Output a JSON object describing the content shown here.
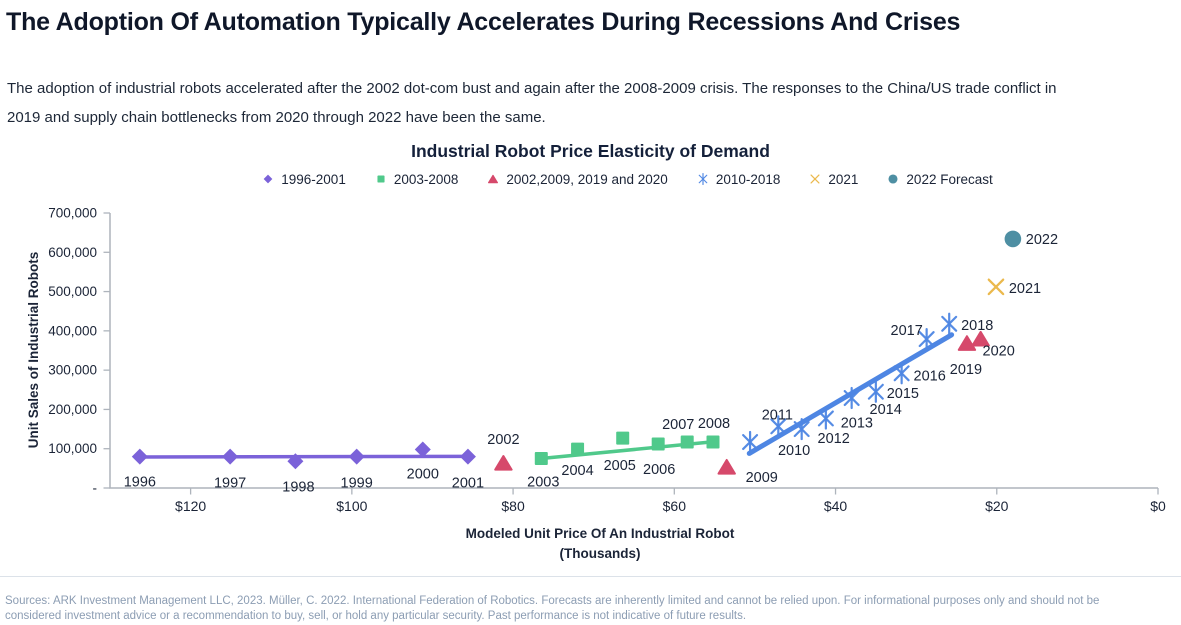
{
  "page": {
    "title": "The Adoption Of Automation Typically Accelerates During Recessions And Crises",
    "subtitle": "The adoption of industrial robots accelerated after the 2002 dot-com bust and again after the 2008-2009 crisis. The responses to the China/US trade conflict in 2019 and supply chain bottlenecks from 2020 through 2022 have been the same.",
    "source": "Sources: ARK Investment Management LLC, 2023. Müller, C. 2022. International Federation of Robotics. Forecasts are inherently limited and cannot be relied upon. For informational purposes only and should not be considered investment advice or a recommendation to buy, sell, or hold any particular security. Past performance is not indicative of future results.",
    "colors": {
      "title_text": "#0F1729",
      "body_text": "#1D2737",
      "axis_line": "#AEB4BC",
      "tick_text": "#1B2437",
      "footer_text": "#8C9DB3"
    }
  },
  "chart_data": {
    "type": "scatter",
    "title": "Industrial Robot Price Elasticity of Demand",
    "xlabel": "Modeled Unit Price Of An Industrial Robot",
    "xlabel_sub": "(Thousands)",
    "ylabel": "Unit Sales of Industrial Robots",
    "x_axis": {
      "reversed": true,
      "min": 0,
      "max": 130,
      "ticks": [
        "$120",
        "$100",
        "$80",
        "$60",
        "$40",
        "$20",
        "$0"
      ],
      "tick_values": [
        120,
        100,
        80,
        60,
        40,
        20,
        0
      ]
    },
    "y_axis": {
      "min": 0,
      "max": 700000,
      "ticks": [
        "700,000",
        "600,000",
        "500,000",
        "400,000",
        "300,000",
        "200,000",
        "100,000",
        "-"
      ],
      "tick_values": [
        700000,
        600000,
        500000,
        400000,
        300000,
        200000,
        100000,
        0
      ]
    },
    "grid": false,
    "legend_position": "top",
    "series": [
      {
        "name": "1996-2001",
        "marker": "diamond",
        "color": "#7B62D9",
        "trend_width": 3.5,
        "trend": [
          [
            126.5,
            79000
          ],
          [
            85.3,
            80500
          ]
        ],
        "points": [
          {
            "year": "1996",
            "price": 126.3,
            "units": 80000,
            "dx": 0,
            "dy": 25
          },
          {
            "year": "1997",
            "price": 115.1,
            "units": 80000,
            "dx": 0,
            "dy": 26
          },
          {
            "year": "1998",
            "price": 107.0,
            "units": 68000,
            "dx": 3,
            "dy": 25
          },
          {
            "year": "1999",
            "price": 99.4,
            "units": 80000,
            "dx": 0,
            "dy": 26
          },
          {
            "year": "2000",
            "price": 91.2,
            "units": 98000,
            "dx": 0,
            "dy": 24
          },
          {
            "year": "2001",
            "price": 85.6,
            "units": 80000,
            "dx": 0,
            "dy": 26
          }
        ]
      },
      {
        "name": "2003-2008",
        "marker": "square",
        "color": "#50C98B",
        "trend_width": 3.5,
        "trend": [
          [
            77.0,
            74000
          ],
          [
            55.0,
            118000
          ]
        ],
        "points": [
          {
            "year": "2003",
            "price": 76.5,
            "units": 75000,
            "dx": 2,
            "dy": 23
          },
          {
            "year": "2004",
            "price": 72.0,
            "units": 99000,
            "dx": 0,
            "dy": 21
          },
          {
            "year": "2005",
            "price": 66.4,
            "units": 127000,
            "dx": -3,
            "dy": 27
          },
          {
            "year": "2006",
            "price": 62.0,
            "units": 112000,
            "dx": 1,
            "dy": 25
          },
          {
            "year": "2007",
            "price": 58.4,
            "units": 117000,
            "dx": -9,
            "dy": -18
          },
          {
            "year": "2008",
            "price": 55.2,
            "units": 117000,
            "dx": 1,
            "dy": -19
          }
        ]
      },
      {
        "name": "2002,2009, 2019 and 2020",
        "marker": "triangle",
        "color": "#D6496B",
        "points": [
          {
            "year": "2002",
            "price": 81.2,
            "units": 64000,
            "dx": 0,
            "dy": -24
          },
          {
            "year": "2009",
            "price": 53.5,
            "units": 54000,
            "dx": 35,
            "dy": 10
          },
          {
            "year": "2019",
            "price": 23.7,
            "units": 369000,
            "dx": -1,
            "dy": 26
          },
          {
            "year": "2020",
            "price": 22.0,
            "units": 380000,
            "dx": 18,
            "dy": 12
          }
        ]
      },
      {
        "name": "2010-2018",
        "marker": "asterisk",
        "color": "#4E86E3",
        "trend_width": 5,
        "trend": [
          [
            50.7,
            88000
          ],
          [
            25.6,
            390000
          ]
        ],
        "points": [
          {
            "year": "2010",
            "price": 50.6,
            "units": 117000,
            "dx": 44,
            "dy": 8
          },
          {
            "year": "2011",
            "price": 47.1,
            "units": 157000,
            "dx": -1,
            "dy": -12
          },
          {
            "year": "2012",
            "price": 44.2,
            "units": 150000,
            "dx": 32,
            "dy": 9
          },
          {
            "year": "2013",
            "price": 41.2,
            "units": 177000,
            "dx": 31,
            "dy": 4
          },
          {
            "year": "2014",
            "price": 38.0,
            "units": 229000,
            "dx": 34,
            "dy": 11
          },
          {
            "year": "2015",
            "price": 35.0,
            "units": 245000,
            "dx": 27,
            "dy": 1
          },
          {
            "year": "2016",
            "price": 31.8,
            "units": 292000,
            "dx": 28,
            "dy": 2
          },
          {
            "year": "2017",
            "price": 28.7,
            "units": 379000,
            "dx": -20,
            "dy": -9
          },
          {
            "year": "2018",
            "price": 25.9,
            "units": 418000,
            "dx": 28,
            "dy": 1
          }
        ]
      },
      {
        "name": "2021",
        "marker": "xcross",
        "color": "#EBB94D",
        "points": [
          {
            "year": "2021",
            "price": 20.1,
            "units": 512000,
            "dx": 29,
            "dy": 1
          }
        ]
      },
      {
        "name": "2022 Forecast",
        "marker": "circle",
        "color": "#4E8FA3",
        "points": [
          {
            "year": "2022",
            "price": 18.0,
            "units": 634000,
            "dx": 29,
            "dy": 0
          }
        ]
      }
    ]
  }
}
